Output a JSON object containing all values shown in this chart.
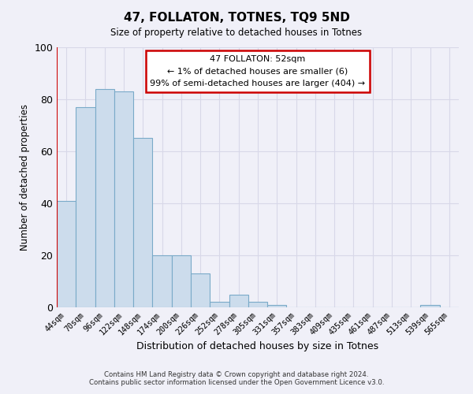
{
  "title": "47, FOLLATON, TOTNES, TQ9 5ND",
  "subtitle": "Size of property relative to detached houses in Totnes",
  "xlabel": "Distribution of detached houses by size in Totnes",
  "ylabel": "Number of detached properties",
  "bar_color": "#ccdcec",
  "bar_edge_color": "#7aaac8",
  "categories": [
    "44sqm",
    "70sqm",
    "96sqm",
    "122sqm",
    "148sqm",
    "174sqm",
    "200sqm",
    "226sqm",
    "252sqm",
    "278sqm",
    "305sqm",
    "331sqm",
    "357sqm",
    "383sqm",
    "409sqm",
    "435sqm",
    "461sqm",
    "487sqm",
    "513sqm",
    "539sqm",
    "565sqm"
  ],
  "values": [
    41,
    77,
    84,
    83,
    65,
    20,
    20,
    13,
    2,
    5,
    2,
    1,
    0,
    0,
    0,
    0,
    0,
    0,
    0,
    1,
    0
  ],
  "ylim": [
    0,
    100
  ],
  "yticks": [
    0,
    20,
    40,
    60,
    80,
    100
  ],
  "annotation_text_line1": "47 FOLLATON: 52sqm",
  "annotation_text_line2": "← 1% of detached houses are smaller (6)",
  "annotation_text_line3": "99% of semi-detached houses are larger (404) →",
  "footer_line1": "Contains HM Land Registry data © Crown copyright and database right 2024.",
  "footer_line2": "Contains public sector information licensed under the Open Government Licence v3.0.",
  "background_color": "#f0f0f8",
  "grid_color": "#d8d8e8",
  "box_edge_color": "#cc0000",
  "red_line_color": "#cc0000",
  "box_face_color": "#ffffff"
}
